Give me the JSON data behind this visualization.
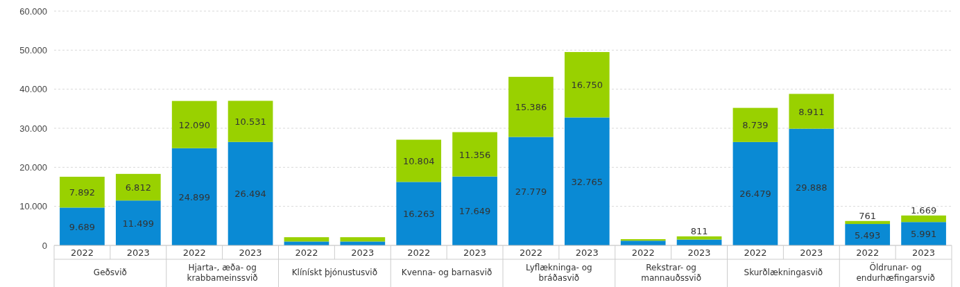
{
  "chart_data": {
    "type": "bar",
    "stacked": true,
    "categories": [
      "2022",
      "2023",
      "2022",
      "2023",
      "2022",
      "2023",
      "2022",
      "2023",
      "2022",
      "2023",
      "2022",
      "2023",
      "2022",
      "2023",
      "2022",
      "2023"
    ],
    "annotations": [
      "Geðsvið",
      "Hjarta-, æða- og krabbameinssvið",
      "Klínískt þjónustusvið",
      "Kvenna- og barnasvið",
      "Lyflækninga- og bráðasvið",
      "Rekstrar- og mannauðssvið",
      "Skurðlækningasvið",
      "Öldrunar- og endurhæfingarsvið"
    ],
    "series": [
      {
        "color": "#0a8ad4",
        "values": [
          9689,
          11499,
          24899,
          26494,
          1000,
          1000,
          16263,
          17649,
          27779,
          32765,
          1200,
          1500,
          26479,
          29888,
          5493,
          5991
        ],
        "value_labels": [
          "9.689",
          "11.499",
          "24.899",
          "26.494",
          null,
          null,
          "16.263",
          "17.649",
          "27.779",
          "32.765",
          null,
          null,
          "26.479",
          "29.888",
          "5.493",
          "5.991"
        ]
      },
      {
        "color": "#99d100",
        "values": [
          7892,
          6812,
          12090,
          10531,
          1100,
          1100,
          10804,
          11356,
          15386,
          16750,
          400,
          811,
          8739,
          8911,
          761,
          1669
        ],
        "value_labels": [
          "7.892",
          "6.812",
          "12.090",
          "10.531",
          null,
          null,
          "10.804",
          "11.356",
          "15.386",
          "16.750",
          null,
          "811",
          "8.739",
          "8.911",
          "761",
          "1.669"
        ]
      }
    ],
    "ylim": [
      0,
      60000
    ],
    "yticks": [
      {
        "value": 0,
        "label": "0"
      },
      {
        "value": 10000,
        "label": "10.000"
      },
      {
        "value": 20000,
        "label": "20.000"
      },
      {
        "value": 30000,
        "label": "30.000"
      },
      {
        "value": 40000,
        "label": "40.000"
      },
      {
        "value": 50000,
        "label": "50.000"
      },
      {
        "value": 60000,
        "label": "60.000"
      }
    ],
    "grid": "y"
  }
}
